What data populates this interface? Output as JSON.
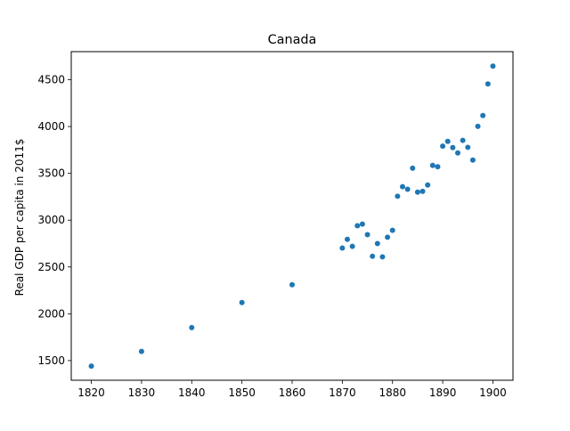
{
  "chart_data": {
    "type": "scatter",
    "title": "Canada",
    "xlabel": "",
    "ylabel": "Real GDP per capita in 2011$",
    "xlim": [
      1816,
      1904
    ],
    "ylim": [
      1290,
      4800
    ],
    "xticks": [
      1820,
      1830,
      1840,
      1850,
      1860,
      1870,
      1880,
      1890,
      1900
    ],
    "yticks": [
      1500,
      2000,
      2500,
      3000,
      3500,
      4000,
      4500
    ],
    "grid": false,
    "marker_color": "#1f77b4",
    "series": [
      {
        "x": [
          1820,
          1830,
          1840,
          1850,
          1860,
          1870,
          1871,
          1872,
          1873,
          1874,
          1875,
          1876,
          1877,
          1878,
          1879,
          1880,
          1881,
          1882,
          1883,
          1884,
          1885,
          1886,
          1887,
          1888,
          1889,
          1890,
          1891,
          1892,
          1893,
          1894,
          1895,
          1896,
          1897,
          1898,
          1899,
          1900
        ],
        "y": [
          1441,
          1598,
          1852,
          2120,
          2310,
          2702,
          2795,
          2720,
          2940,
          2958,
          2845,
          2614,
          2750,
          2608,
          2818,
          2892,
          3255,
          3358,
          3330,
          3555,
          3300,
          3308,
          3375,
          3585,
          3570,
          3790,
          3842,
          3775,
          3718,
          3852,
          3778,
          3642,
          4002,
          4118,
          4455,
          4645
        ]
      }
    ]
  }
}
